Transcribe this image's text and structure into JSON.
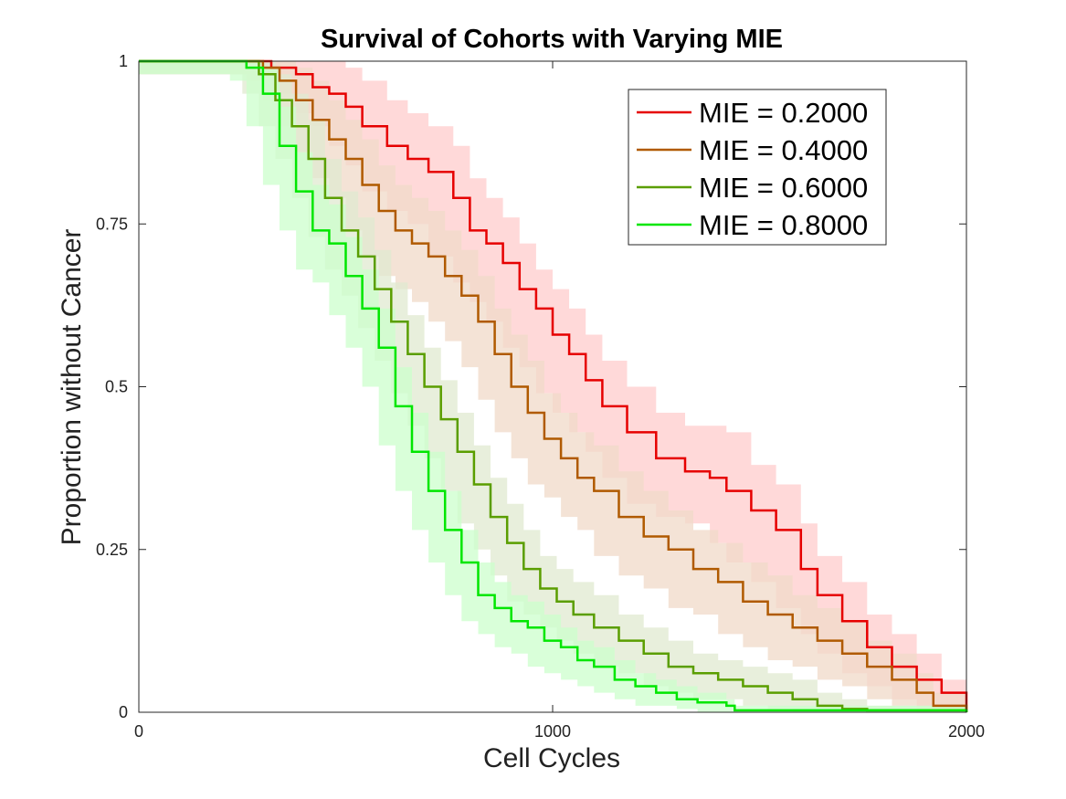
{
  "chart_data": {
    "type": "line",
    "title": "Survival of Cohorts with Varying MIE",
    "xlabel": "Cell Cycles",
    "ylabel": "Proportion without Cancer",
    "xlim": [
      0,
      2000
    ],
    "ylim": [
      0,
      1
    ],
    "xticks": [
      0,
      1000,
      2000
    ],
    "xtick_labels": [
      "0",
      "1000",
      "2000"
    ],
    "yticks": [
      0,
      0.25,
      0.5,
      0.75,
      1
    ],
    "ytick_labels": [
      "0",
      "0.25",
      "0.5",
      "0.75",
      "1"
    ],
    "grid": false,
    "legend_position": "top-right",
    "series": [
      {
        "name": "MIE = 0.2000",
        "color": "#e60000",
        "band_color": "#ffcccc",
        "x": [
          0,
          270,
          320,
          380,
          420,
          460,
          500,
          540,
          600,
          650,
          700,
          760,
          800,
          840,
          880,
          920,
          960,
          1000,
          1040,
          1080,
          1120,
          1180,
          1250,
          1320,
          1380,
          1420,
          1480,
          1540,
          1600,
          1640,
          1700,
          1760,
          1820,
          1880,
          1940,
          2000
        ],
        "y": [
          1,
          1,
          0.99,
          0.98,
          0.96,
          0.95,
          0.93,
          0.9,
          0.87,
          0.85,
          0.83,
          0.79,
          0.74,
          0.72,
          0.69,
          0.65,
          0.62,
          0.58,
          0.55,
          0.51,
          0.47,
          0.43,
          0.39,
          0.37,
          0.36,
          0.34,
          0.31,
          0.28,
          0.22,
          0.18,
          0.14,
          0.1,
          0.07,
          0.05,
          0.03,
          0
        ],
        "band_upper": [
          1,
          1,
          1,
          1,
          1,
          1,
          0.99,
          0.97,
          0.94,
          0.92,
          0.9,
          0.87,
          0.82,
          0.79,
          0.76,
          0.72,
          0.68,
          0.65,
          0.62,
          0.58,
          0.54,
          0.5,
          0.46,
          0.44,
          0.44,
          0.43,
          0.38,
          0.35,
          0.29,
          0.24,
          0.2,
          0.15,
          0.12,
          0.09,
          0.05,
          0.02
        ],
        "band_lower": [
          0.98,
          0.98,
          0.97,
          0.95,
          0.92,
          0.9,
          0.87,
          0.84,
          0.8,
          0.77,
          0.75,
          0.7,
          0.66,
          0.63,
          0.6,
          0.56,
          0.53,
          0.49,
          0.46,
          0.43,
          0.4,
          0.36,
          0.32,
          0.3,
          0.29,
          0.26,
          0.23,
          0.2,
          0.16,
          0.12,
          0.09,
          0.06,
          0.04,
          0.02,
          0.01,
          0
        ]
      },
      {
        "name": "MIE = 0.4000",
        "color": "#b05a00",
        "band_color": "#f0d9c8",
        "x": [
          0,
          260,
          300,
          340,
          380,
          420,
          460,
          500,
          540,
          580,
          620,
          660,
          700,
          740,
          780,
          820,
          860,
          900,
          940,
          980,
          1020,
          1060,
          1100,
          1160,
          1220,
          1280,
          1340,
          1400,
          1460,
          1520,
          1580,
          1640,
          1700,
          1760,
          1820,
          1880,
          1920,
          2000
        ],
        "y": [
          1,
          1,
          0.99,
          0.97,
          0.94,
          0.91,
          0.88,
          0.85,
          0.81,
          0.77,
          0.74,
          0.72,
          0.7,
          0.67,
          0.64,
          0.6,
          0.55,
          0.5,
          0.46,
          0.42,
          0.39,
          0.36,
          0.34,
          0.3,
          0.27,
          0.25,
          0.22,
          0.2,
          0.17,
          0.15,
          0.13,
          0.11,
          0.09,
          0.07,
          0.05,
          0.03,
          0.01,
          0
        ],
        "band_upper": [
          1,
          1,
          1,
          1,
          0.99,
          0.97,
          0.94,
          0.91,
          0.88,
          0.84,
          0.81,
          0.79,
          0.77,
          0.74,
          0.71,
          0.67,
          0.62,
          0.58,
          0.54,
          0.49,
          0.46,
          0.43,
          0.41,
          0.37,
          0.34,
          0.31,
          0.28,
          0.26,
          0.23,
          0.21,
          0.18,
          0.16,
          0.14,
          0.11,
          0.09,
          0.06,
          0.03,
          0.01
        ],
        "band_lower": [
          0.98,
          0.98,
          0.97,
          0.94,
          0.9,
          0.86,
          0.82,
          0.79,
          0.74,
          0.7,
          0.67,
          0.65,
          0.63,
          0.6,
          0.57,
          0.53,
          0.48,
          0.43,
          0.39,
          0.35,
          0.33,
          0.3,
          0.28,
          0.24,
          0.21,
          0.19,
          0.16,
          0.15,
          0.12,
          0.1,
          0.08,
          0.07,
          0.05,
          0.04,
          0.02,
          0.01,
          0,
          0
        ]
      },
      {
        "name": "MIE = 0.6000",
        "color": "#5a9e00",
        "band_color": "#e0ead0",
        "x": [
          0,
          250,
          290,
          330,
          370,
          410,
          450,
          490,
          530,
          570,
          610,
          650,
          690,
          730,
          770,
          810,
          850,
          890,
          930,
          970,
          1010,
          1050,
          1100,
          1160,
          1220,
          1280,
          1340,
          1400,
          1460,
          1520,
          1580,
          1640,
          1700,
          1760,
          1900,
          2000
        ],
        "y": [
          1,
          1,
          0.98,
          0.94,
          0.9,
          0.85,
          0.79,
          0.74,
          0.7,
          0.65,
          0.6,
          0.55,
          0.5,
          0.45,
          0.4,
          0.35,
          0.3,
          0.26,
          0.22,
          0.19,
          0.17,
          0.15,
          0.13,
          0.11,
          0.09,
          0.07,
          0.06,
          0.05,
          0.04,
          0.03,
          0.02,
          0.01,
          0.005,
          0.003,
          0.003,
          0
        ],
        "band_upper": [
          1,
          1,
          1,
          0.98,
          0.95,
          0.91,
          0.85,
          0.8,
          0.76,
          0.71,
          0.66,
          0.61,
          0.56,
          0.51,
          0.46,
          0.41,
          0.36,
          0.32,
          0.28,
          0.24,
          0.22,
          0.2,
          0.18,
          0.15,
          0.13,
          0.11,
          0.09,
          0.08,
          0.07,
          0.06,
          0.05,
          0.03,
          0.02,
          0.01,
          0.01,
          0
        ],
        "band_lower": [
          0.98,
          0.98,
          0.95,
          0.9,
          0.85,
          0.79,
          0.73,
          0.68,
          0.64,
          0.59,
          0.54,
          0.49,
          0.44,
          0.39,
          0.34,
          0.29,
          0.25,
          0.21,
          0.17,
          0.15,
          0.13,
          0.11,
          0.09,
          0.07,
          0.06,
          0.04,
          0.03,
          0.02,
          0.02,
          0.01,
          0.005,
          0,
          0,
          0,
          0,
          0
        ]
      },
      {
        "name": "MIE = 0.8000",
        "color": "#00e600",
        "band_color": "#ccffcc",
        "x": [
          0,
          180,
          220,
          260,
          300,
          340,
          380,
          420,
          460,
          500,
          540,
          580,
          620,
          660,
          700,
          740,
          780,
          820,
          860,
          900,
          940,
          980,
          1020,
          1060,
          1100,
          1150,
          1200,
          1250,
          1300,
          1350,
          1420,
          1440,
          1600,
          1800,
          2000
        ],
        "y": [
          1,
          1,
          1,
          0.99,
          0.95,
          0.87,
          0.8,
          0.74,
          0.72,
          0.67,
          0.62,
          0.56,
          0.47,
          0.4,
          0.34,
          0.28,
          0.23,
          0.18,
          0.16,
          0.14,
          0.13,
          0.11,
          0.1,
          0.08,
          0.07,
          0.05,
          0.04,
          0.03,
          0.02,
          0.015,
          0.01,
          0.003,
          0.003,
          0.003,
          0
        ],
        "band_upper": [
          1,
          1,
          1,
          1,
          0.99,
          0.93,
          0.86,
          0.81,
          0.78,
          0.73,
          0.68,
          0.62,
          0.53,
          0.46,
          0.4,
          0.34,
          0.28,
          0.23,
          0.2,
          0.18,
          0.17,
          0.15,
          0.13,
          0.11,
          0.1,
          0.08,
          0.06,
          0.05,
          0.04,
          0.03,
          0.02,
          0.01,
          0.01,
          0.01,
          0.01
        ],
        "band_lower": [
          0.98,
          0.98,
          0.98,
          0.97,
          0.9,
          0.81,
          0.74,
          0.68,
          0.66,
          0.61,
          0.56,
          0.5,
          0.41,
          0.34,
          0.28,
          0.23,
          0.18,
          0.14,
          0.12,
          0.1,
          0.09,
          0.07,
          0.06,
          0.05,
          0.04,
          0.03,
          0.02,
          0.01,
          0.01,
          0.005,
          0,
          0,
          0,
          0,
          0
        ]
      }
    ]
  }
}
